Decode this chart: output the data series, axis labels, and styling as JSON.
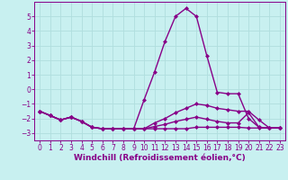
{
  "xlabel": "Windchill (Refroidissement éolien,°C)",
  "background_color": "#c8f0f0",
  "grid_color": "#b0dede",
  "line_color": "#880088",
  "xlim": [
    -0.5,
    23.5
  ],
  "ylim": [
    -3.5,
    6.0
  ],
  "xticks": [
    0,
    1,
    2,
    3,
    4,
    5,
    6,
    7,
    8,
    9,
    10,
    11,
    12,
    13,
    14,
    15,
    16,
    17,
    18,
    19,
    20,
    21,
    22,
    23
  ],
  "yticks": [
    -3,
    -2,
    -1,
    0,
    1,
    2,
    3,
    4,
    5
  ],
  "lines": [
    {
      "x": [
        0,
        1,
        2,
        3,
        4,
        5,
        6,
        7,
        8,
        9,
        10,
        11,
        12,
        13,
        14,
        15,
        16,
        17,
        18,
        19,
        20,
        21,
        22,
        23
      ],
      "y": [
        -1.5,
        -1.8,
        -2.1,
        -1.9,
        -2.2,
        -2.6,
        -2.7,
        -2.7,
        -2.7,
        -2.7,
        -0.7,
        1.2,
        3.3,
        5.0,
        5.55,
        5.0,
        2.3,
        -0.2,
        -0.3,
        -0.3,
        -2.0,
        -2.6,
        -2.65,
        -2.65
      ]
    },
    {
      "x": [
        0,
        1,
        2,
        3,
        4,
        5,
        6,
        7,
        8,
        9,
        10,
        11,
        12,
        13,
        14,
        15,
        16,
        17,
        18,
        19,
        20,
        21,
        22,
        23
      ],
      "y": [
        -1.5,
        -1.8,
        -2.1,
        -1.9,
        -2.2,
        -2.6,
        -2.7,
        -2.7,
        -2.7,
        -2.7,
        -2.7,
        -2.3,
        -2.0,
        -1.6,
        -1.3,
        -1.0,
        -1.1,
        -1.3,
        -1.4,
        -1.5,
        -1.5,
        -2.1,
        -2.65,
        -2.65
      ]
    },
    {
      "x": [
        0,
        1,
        2,
        3,
        4,
        5,
        6,
        7,
        8,
        9,
        10,
        11,
        12,
        13,
        14,
        15,
        16,
        17,
        18,
        19,
        20,
        21,
        22,
        23
      ],
      "y": [
        -1.5,
        -1.8,
        -2.1,
        -1.9,
        -2.2,
        -2.6,
        -2.7,
        -2.7,
        -2.7,
        -2.7,
        -2.7,
        -2.55,
        -2.4,
        -2.2,
        -2.05,
        -1.9,
        -2.05,
        -2.2,
        -2.3,
        -2.3,
        -1.6,
        -2.6,
        -2.65,
        -2.65
      ]
    },
    {
      "x": [
        0,
        1,
        2,
        3,
        4,
        5,
        6,
        7,
        8,
        9,
        10,
        11,
        12,
        13,
        14,
        15,
        16,
        17,
        18,
        19,
        20,
        21,
        22,
        23
      ],
      "y": [
        -1.5,
        -1.8,
        -2.1,
        -1.9,
        -2.2,
        -2.6,
        -2.7,
        -2.7,
        -2.7,
        -2.7,
        -2.7,
        -2.7,
        -2.7,
        -2.7,
        -2.7,
        -2.6,
        -2.6,
        -2.6,
        -2.6,
        -2.6,
        -2.65,
        -2.65,
        -2.65,
        -2.65
      ]
    }
  ],
  "marker": "D",
  "markersize": 2.0,
  "linewidth": 1.0,
  "xlabel_fontsize": 6.5,
  "tick_fontsize": 5.5
}
